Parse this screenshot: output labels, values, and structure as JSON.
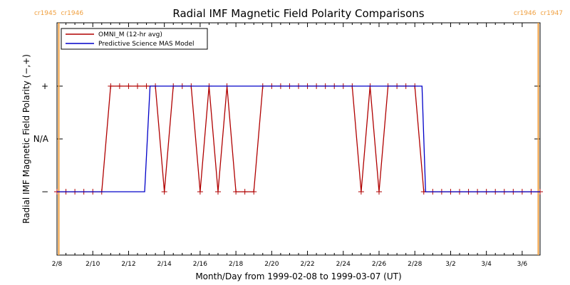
{
  "chart_data": {
    "type": "line",
    "title": "Radial IMF Magnetic Field Polarity Comparisons",
    "xlabel": "Month/Day from 1999-02-08 to 1999-03-07 (UT)",
    "ylabel": "Radial IMF Magnetic Field Polarity (−,+)",
    "x_range_days": [
      0,
      27
    ],
    "y_range": [
      -2.2,
      2.2
    ],
    "y_ticks": [
      {
        "value": -1,
        "label": "−"
      },
      {
        "value": 0,
        "label": "N/A"
      },
      {
        "value": 1,
        "label": "+"
      }
    ],
    "x_ticks": [
      {
        "day": 0,
        "label": "2/8"
      },
      {
        "day": 2,
        "label": "2/10"
      },
      {
        "day": 4,
        "label": "2/12"
      },
      {
        "day": 6,
        "label": "2/14"
      },
      {
        "day": 8,
        "label": "2/16"
      },
      {
        "day": 10,
        "label": "2/18"
      },
      {
        "day": 12,
        "label": "2/20"
      },
      {
        "day": 14,
        "label": "2/22"
      },
      {
        "day": 16,
        "label": "2/24"
      },
      {
        "day": 18,
        "label": "2/26"
      },
      {
        "day": 20,
        "label": "2/28"
      },
      {
        "day": 22,
        "label": "3/2"
      },
      {
        "day": 24,
        "label": "3/4"
      },
      {
        "day": 26,
        "label": "3/6"
      }
    ],
    "carrington_markers": [
      {
        "day": 0.1,
        "left": "cr1945",
        "right": "cr1946"
      },
      {
        "day": 26.9,
        "left": "cr1946",
        "right": "cr1947"
      }
    ],
    "legend": "top-left",
    "series": [
      {
        "name": "OMNI_M (12-hr avg)",
        "color": "#b00000",
        "markers": "plus",
        "x": [
          0.0,
          0.5,
          1.0,
          1.5,
          2.0,
          2.5,
          3.0,
          3.5,
          4.0,
          4.5,
          5.0,
          5.5,
          6.0,
          6.5,
          7.0,
          7.5,
          8.0,
          8.5,
          9.0,
          9.5,
          10.0,
          10.5,
          11.0,
          11.5,
          12.0,
          12.5,
          13.0,
          13.5,
          14.0,
          14.5,
          15.0,
          15.5,
          16.0,
          16.5,
          17.0,
          17.5,
          18.0,
          18.5,
          19.0,
          19.5,
          20.0,
          20.5,
          21.0,
          21.5,
          22.0,
          22.5,
          23.0,
          23.5,
          24.0,
          24.5,
          25.0,
          25.5,
          26.0,
          26.5,
          27.0
        ],
        "y": [
          -1,
          -1,
          -1,
          -1,
          -1,
          -1,
          1,
          1,
          1,
          1,
          1,
          1,
          -1,
          1,
          1,
          1,
          -1,
          1,
          -1,
          1,
          -1,
          -1,
          -1,
          1,
          1,
          1,
          1,
          1,
          1,
          1,
          1,
          1,
          1,
          1,
          -1,
          1,
          -1,
          1,
          1,
          1,
          1,
          -1,
          -1,
          -1,
          -1,
          -1,
          -1,
          -1,
          -1,
          -1,
          -1,
          -1,
          -1,
          -1,
          -1
        ]
      },
      {
        "name": "Predictive Science MAS Model",
        "color": "#0000c8",
        "markers": "none",
        "x": [
          0.0,
          4.9,
          5.2,
          20.4,
          20.6,
          27.0
        ],
        "y": [
          -1,
          -1,
          1,
          1,
          -1,
          -1
        ]
      }
    ]
  }
}
